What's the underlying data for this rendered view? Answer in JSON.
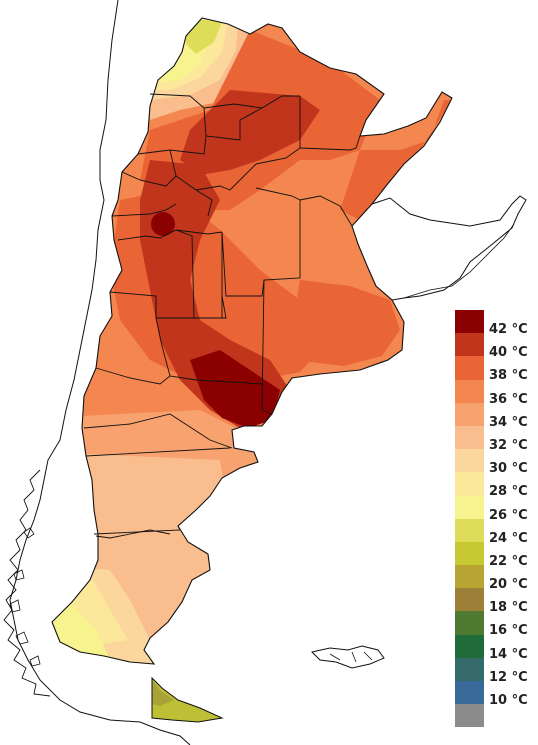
{
  "map": {
    "colors": {
      "c42": "#8b0000",
      "c40": "#c0351c",
      "c38": "#ea6535",
      "c36": "#f4874f",
      "c34": "#f7a26f",
      "c32": "#f9bd8e",
      "c30": "#fbd79e",
      "c28": "#fbe89a",
      "c26": "#f7f38e",
      "c24": "#dedd5a",
      "c22": "#bdbf34",
      "c20": "#a9a239"
    }
  },
  "legend": {
    "items": [
      {
        "label": "42 °C",
        "color": "#8b0000"
      },
      {
        "label": "40 °C",
        "color": "#c0351c"
      },
      {
        "label": "38 °C",
        "color": "#ea6535"
      },
      {
        "label": "36 °C",
        "color": "#f4874f"
      },
      {
        "label": "34 °C",
        "color": "#f7a26f"
      },
      {
        "label": "32 °C",
        "color": "#f9bd8e"
      },
      {
        "label": "30 °C",
        "color": "#fbd79e"
      },
      {
        "label": "28 °C",
        "color": "#fbe89a"
      },
      {
        "label": "26 °C",
        "color": "#f7f38e"
      },
      {
        "label": "24 °C",
        "color": "#dedd5a"
      },
      {
        "label": "22 °C",
        "color": "#c7c933"
      },
      {
        "label": "20 °C",
        "color": "#b8a433"
      },
      {
        "label": "18 °C",
        "color": "#9e7f38"
      },
      {
        "label": "16 °C",
        "color": "#4f7a32"
      },
      {
        "label": "14 °C",
        "color": "#1f6b3a"
      },
      {
        "label": "12 °C",
        "color": "#346a6a"
      },
      {
        "label": "10 °C",
        "color": "#3a6a9a"
      },
      {
        "label": "",
        "color": "#8c8c8c"
      }
    ]
  }
}
